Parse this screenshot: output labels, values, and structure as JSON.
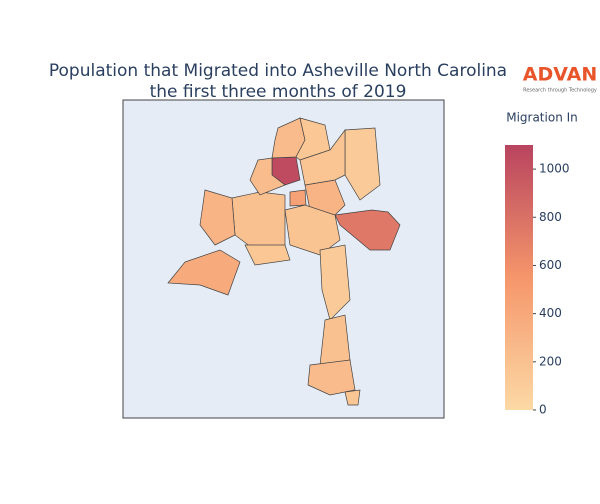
{
  "chart_data": {
    "type": "choropleth",
    "title": [
      "Population that Migrated into Asheville North Carolina",
      "the first three months of 2019"
    ],
    "values": [
      1050,
      250,
      150,
      120,
      750,
      300,
      450,
      620,
      200,
      300,
      380,
      180,
      170,
      120,
      200,
      250,
      160,
      230,
      150
    ],
    "colorbar": {
      "title": "Migration In",
      "range": [
        0,
        1100
      ],
      "ticks": [
        0,
        200,
        400,
        600,
        800,
        1000
      ],
      "colorscale": [
        "#fcd9a5",
        "#f5966b",
        "#b8445f"
      ]
    },
    "logo": {
      "name": "ADVAN",
      "tagline": "Research through Technology"
    }
  }
}
